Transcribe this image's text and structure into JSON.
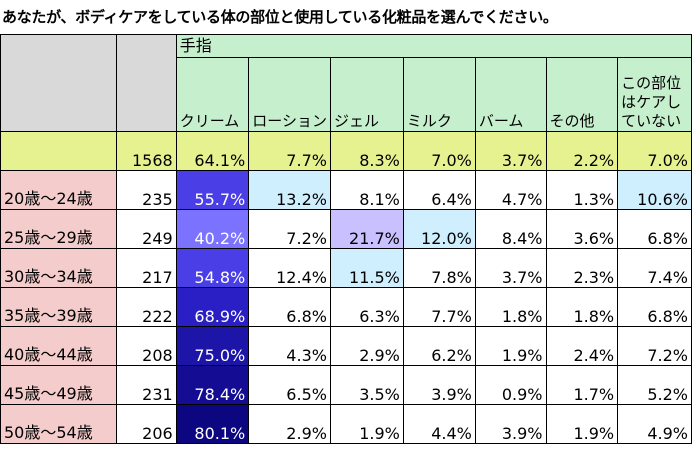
{
  "title": "あなたが、ボディケアをしている体の部位と使用している化粧品を選んでください。",
  "group_header": "手指",
  "columns": [
    "クリーム",
    "ローション",
    "ジェル",
    "ミルク",
    "バーム",
    "その他",
    "この部位はケアしていない"
  ],
  "total_row": {
    "label": "",
    "n": "1568",
    "values": [
      "64.1%",
      "7.7%",
      "8.3%",
      "7.0%",
      "3.7%",
      "2.2%",
      "7.0%"
    ]
  },
  "rows": [
    {
      "label": "20歳～24歳",
      "n": "235",
      "values": [
        "55.7%",
        "13.2%",
        "8.1%",
        "6.4%",
        "4.7%",
        "1.3%",
        "10.6%"
      ]
    },
    {
      "label": "25歳～29歳",
      "n": "249",
      "values": [
        "40.2%",
        "7.2%",
        "21.7%",
        "12.0%",
        "8.4%",
        "3.6%",
        "6.8%"
      ]
    },
    {
      "label": "30歳～34歳",
      "n": "217",
      "values": [
        "54.8%",
        "12.4%",
        "11.5%",
        "7.8%",
        "3.7%",
        "2.3%",
        "7.4%"
      ]
    },
    {
      "label": "35歳～39歳",
      "n": "222",
      "values": [
        "68.9%",
        "6.8%",
        "6.3%",
        "7.7%",
        "1.8%",
        "1.8%",
        "6.8%"
      ]
    },
    {
      "label": "40歳～44歳",
      "n": "208",
      "values": [
        "75.0%",
        "4.3%",
        "2.9%",
        "6.2%",
        "1.9%",
        "2.4%",
        "7.2%"
      ]
    },
    {
      "label": "45歳～49歳",
      "n": "231",
      "values": [
        "78.4%",
        "6.5%",
        "3.5%",
        "3.9%",
        "0.9%",
        "1.7%",
        "5.2%"
      ]
    },
    {
      "label": "50歳～54歳",
      "n": "206",
      "values": [
        "80.1%",
        "2.9%",
        "1.9%",
        "4.4%",
        "3.9%",
        "1.9%",
        "4.9%"
      ]
    }
  ],
  "colors": {
    "header_green": "#c6efce",
    "total_yellow": "#e6f28f",
    "age_pink": "#f4cccc",
    "blank_gray": "#d9d9d9",
    "highlight_light": "#cfefff",
    "highlight_purple": "#c9c1ff",
    "cream_scale": [
      {
        "value": "40.2%",
        "color": "#7b73ff"
      },
      {
        "value": "54.8%",
        "color": "#4a3fe6"
      },
      {
        "value": "55.7%",
        "color": "#4a3fe6"
      },
      {
        "value": "68.9%",
        "color": "#2a1fc4"
      },
      {
        "value": "75.0%",
        "color": "#1d14a8"
      },
      {
        "value": "78.4%",
        "color": "#140d93"
      },
      {
        "value": "80.1%",
        "color": "#0c0780"
      }
    ]
  }
}
